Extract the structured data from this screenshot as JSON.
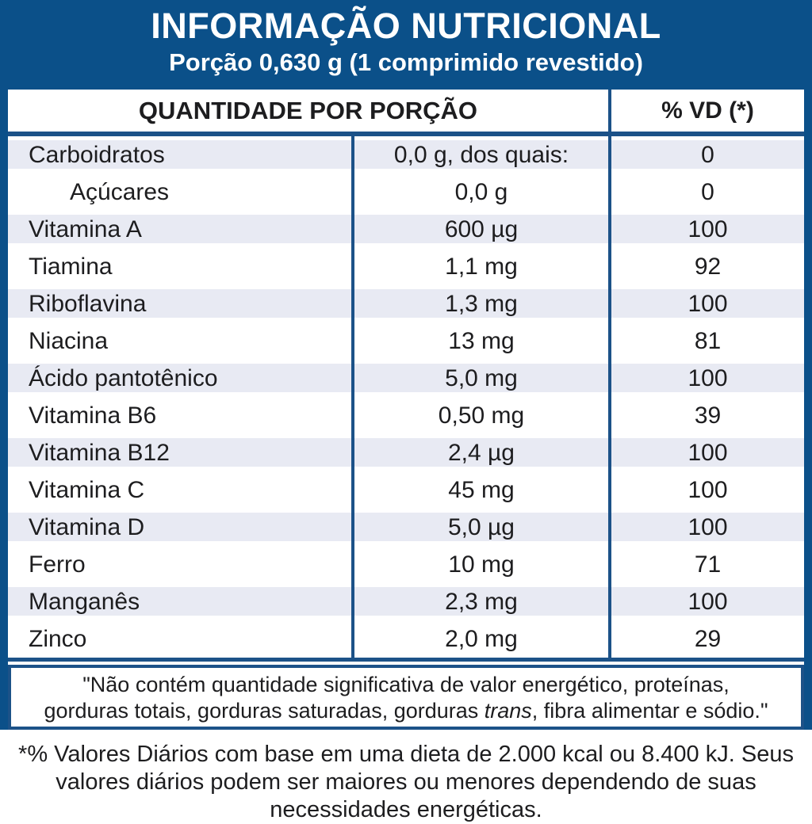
{
  "header": {
    "title": "INFORMAÇÃO NUTRICIONAL",
    "serving": "Porção 0,630 g (1 comprimido revestido)"
  },
  "table": {
    "col_quantity": "QUANTIDADE POR PORÇÃO",
    "col_vd": "% VD (*)",
    "rows": [
      {
        "name": "Carboidratos",
        "amount": "0,0 g, dos quais:",
        "vd": "0"
      },
      {
        "name": "Açúcares",
        "amount": "0,0 g",
        "vd": "0",
        "indent": true
      },
      {
        "name": "Vitamina A",
        "amount": "600 µg",
        "vd": "100"
      },
      {
        "name": "Tiamina",
        "amount": "1,1 mg",
        "vd": "92"
      },
      {
        "name": "Riboflavina",
        "amount": "1,3 mg",
        "vd": "100"
      },
      {
        "name": "Niacina",
        "amount": "13 mg",
        "vd": "81"
      },
      {
        "name": "Ácido pantotênico",
        "amount": "5,0 mg",
        "vd": "100"
      },
      {
        "name": "Vitamina B6",
        "amount": "0,50 mg",
        "vd": "39"
      },
      {
        "name": "Vitamina B12",
        "amount": "2,4 µg",
        "vd": "100"
      },
      {
        "name": "Vitamina C",
        "amount": "45 mg",
        "vd": "100"
      },
      {
        "name": "Vitamina D",
        "amount": "5,0 µg",
        "vd": "100"
      },
      {
        "name": "Ferro",
        "amount": "10 mg",
        "vd": "71"
      },
      {
        "name": "Manganês",
        "amount": "2,3 mg",
        "vd": "100"
      },
      {
        "name": "Zinco",
        "amount": "2,0 mg",
        "vd": "29"
      }
    ]
  },
  "disclaimer": {
    "line1": "\"Não contém quantidade significativa de valor energético, proteínas,",
    "line2_pre": "gorduras totais, gorduras saturadas, gorduras ",
    "line2_italic": "trans",
    "line2_post": ", fibra alimentar e sódio.\""
  },
  "footnote": {
    "line1": "*% Valores Diários com base em uma dieta de 2.000 kcal ou 8.400 kJ. Seus",
    "line2": "valores diários podem ser maiores ou menores dependendo de suas",
    "line3": "necessidades energéticas."
  },
  "colors": {
    "brand_blue": "#0b5089",
    "row_stripe": "#e8eaf3"
  }
}
